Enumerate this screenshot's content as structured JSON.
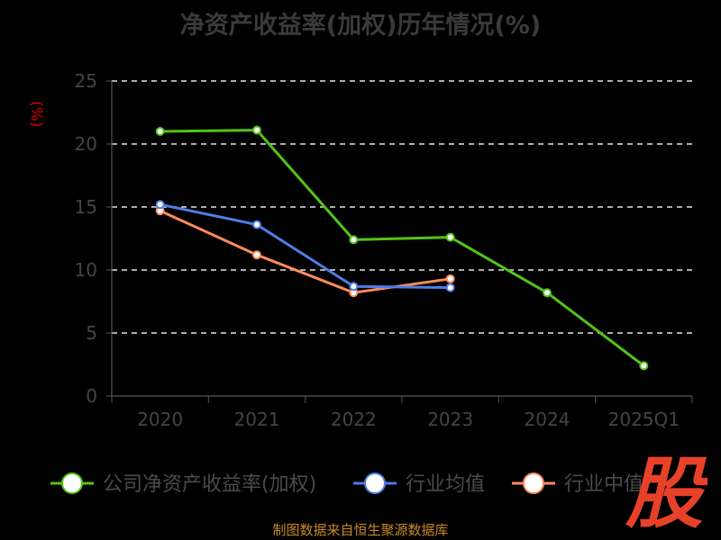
{
  "title": "净资产收益率(加权)历年情况(%)",
  "unit_label": "(%)",
  "source": "制图数据来自恒生聚源数据库",
  "logo": {
    "text": "股",
    "color": "#e8412a"
  },
  "chart_data": {
    "type": "line",
    "title": "净资产收益率(加权)历年情况(%)",
    "xlabel": "",
    "ylabel": "(%)",
    "categories": [
      "2020",
      "2021",
      "2022",
      "2023",
      "2024",
      "2025Q1"
    ],
    "ylim": [
      0,
      25
    ],
    "yticks": [
      0,
      5,
      10,
      15,
      20,
      25
    ],
    "grid": true,
    "legend_position": "bottom",
    "series": [
      {
        "name": "公司净资产收益率(加权)",
        "color": "#52c41a",
        "values": [
          21.0,
          21.1,
          12.4,
          12.6,
          8.2,
          2.4
        ]
      },
      {
        "name": "行业均值",
        "color": "#4e7de6",
        "values": [
          15.2,
          13.6,
          8.7,
          8.6,
          null,
          null
        ]
      },
      {
        "name": "行业中值",
        "color": "#ff8c5a",
        "values": [
          14.7,
          11.2,
          8.2,
          9.3,
          null,
          null
        ]
      }
    ]
  }
}
